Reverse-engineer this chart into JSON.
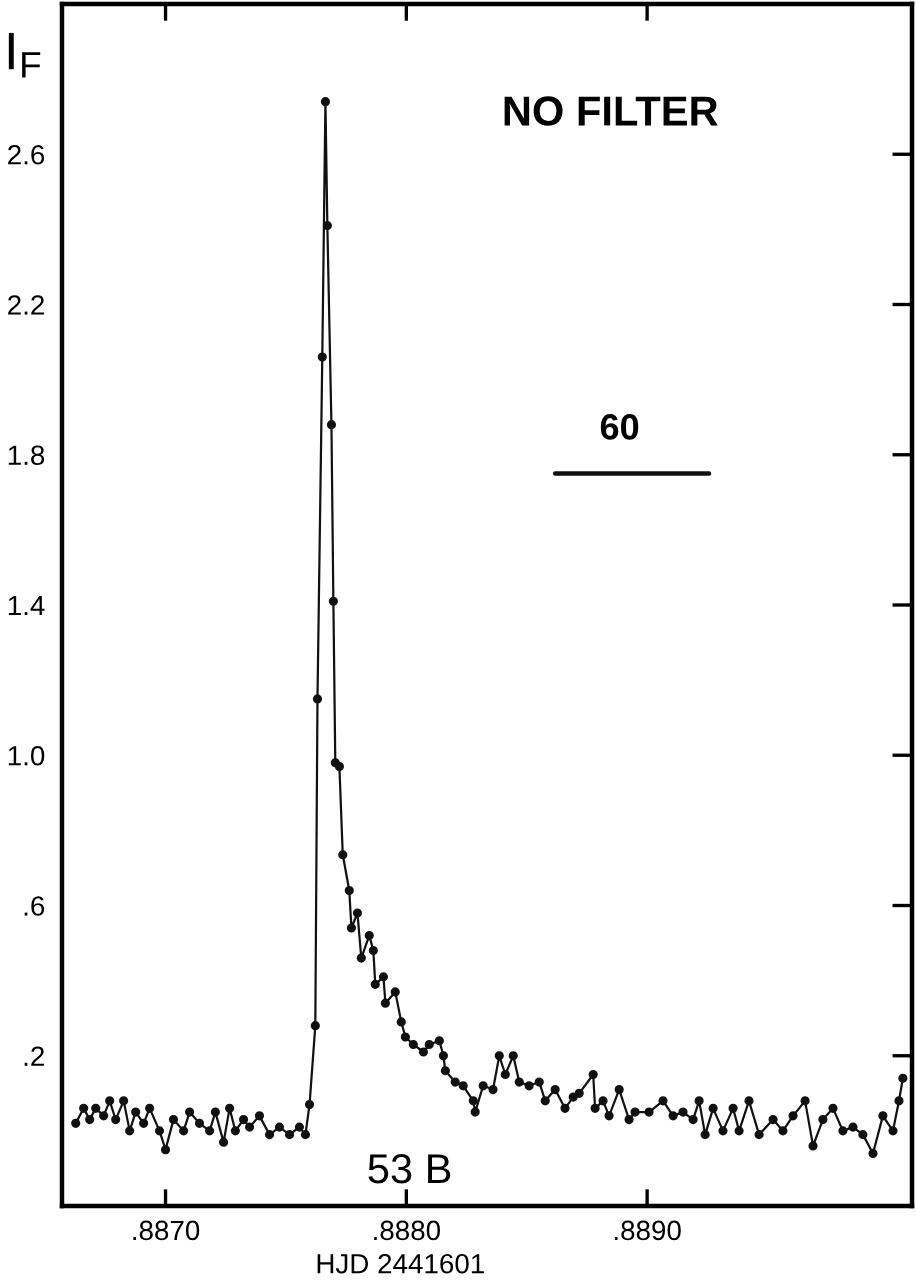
{
  "chart_data": {
    "type": "line",
    "title": "NO FILTER",
    "xlabel": "HJD 2441601",
    "ylabel": "I$_{F}$",
    "marker": "circle",
    "line_style": "solid",
    "xlim": [
      0.88657,
      0.8901
    ],
    "ylim": [
      -0.2,
      3.0
    ],
    "xticks": [
      {
        "value": 0.887,
        "label": ".8870"
      },
      {
        "value": 0.888,
        "label": ".8880"
      },
      {
        "value": 0.889,
        "label": ".8890"
      }
    ],
    "yticks": [
      {
        "value": 0.2,
        "label": ".2"
      },
      {
        "value": 0.6,
        "label": ".6"
      },
      {
        "value": 1,
        "label": "1.0"
      },
      1.4,
      1.8,
      2.2,
      2.6
    ],
    "annotations": [
      "53 B",
      "60"
    ],
    "series": [
      {
        "color": "#111111",
        "x": [
          0.886627,
          0.88666,
          0.886685,
          0.88671,
          0.886743,
          0.886768,
          0.886793,
          0.886826,
          0.886851,
          0.886876,
          0.886909,
          0.886934,
          0.886975,
          0.887,
          0.887033,
          0.887075,
          0.8871,
          0.887141,
          0.887183,
          0.887207,
          0.887241,
          0.887266,
          0.88729,
          0.887324,
          0.887349,
          0.88739,
          0.887432,
          0.887473,
          0.887515,
          0.887556,
          0.887581,
          0.887598,
          0.887622,
          0.887631,
          0.887651,
          0.887664,
          0.887672,
          0.887689,
          0.887697,
          0.887705,
          0.887722,
          0.887736,
          0.887763,
          0.887772,
          0.887797,
          0.887813,
          0.887846,
          0.887863,
          0.887871,
          0.887905,
          0.887913,
          0.887954,
          0.887979,
          0.887996,
          0.888029,
          0.888071,
          0.888095,
          0.888137,
          0.888154,
          0.888162,
          0.888203,
          0.888236,
          0.888278,
          0.888286,
          0.888319,
          0.88836,
          0.888386,
          0.888411,
          0.888444,
          0.888469,
          0.88851,
          0.888552,
          0.888577,
          0.888618,
          0.888659,
          0.888693,
          0.888718,
          0.888776,
          0.888784,
          0.888817,
          0.888842,
          0.888884,
          0.888925,
          0.88895,
          0.889008,
          0.889066,
          0.889108,
          0.889149,
          0.889191,
          0.889216,
          0.889241,
          0.889274,
          0.889315,
          0.889357,
          0.889382,
          0.889423,
          0.889465,
          0.889523,
          0.889564,
          0.889606,
          0.889656,
          0.889689,
          0.88973,
          0.889772,
          0.889813,
          0.889855,
          0.889896,
          0.889938,
          0.889979,
          0.890021,
          0.890046,
          0.890062
        ],
        "values": [
          0.02,
          0.06,
          0.03,
          0.06,
          0.04,
          0.08,
          0.03,
          0.08,
          0.0,
          0.05,
          0.02,
          0.06,
          0.0,
          -0.05,
          0.03,
          0.0,
          0.05,
          0.02,
          0.0,
          0.05,
          -0.03,
          0.06,
          0.0,
          0.03,
          0.01,
          0.04,
          -0.01,
          0.01,
          -0.01,
          0.01,
          -0.01,
          0.07,
          0.28,
          1.15,
          2.06,
          2.74,
          2.41,
          1.88,
          1.41,
          0.98,
          0.97,
          0.735,
          0.64,
          0.54,
          0.58,
          0.46,
          0.52,
          0.48,
          0.39,
          0.41,
          0.34,
          0.37,
          0.29,
          0.25,
          0.23,
          0.21,
          0.23,
          0.24,
          0.2,
          0.16,
          0.13,
          0.12,
          0.08,
          0.05,
          0.12,
          0.11,
          0.2,
          0.15,
          0.2,
          0.13,
          0.12,
          0.13,
          0.08,
          0.11,
          0.06,
          0.09,
          0.1,
          0.15,
          0.06,
          0.08,
          0.04,
          0.11,
          0.03,
          0.05,
          0.05,
          0.08,
          0.04,
          0.05,
          0.03,
          0.08,
          -0.01,
          0.06,
          0.0,
          0.06,
          0.0,
          0.08,
          -0.01,
          0.03,
          0.0,
          0.04,
          0.08,
          -0.04,
          0.03,
          0.06,
          0.0,
          0.01,
          -0.01,
          -0.06,
          0.04,
          0.0,
          0.08,
          0.14
        ]
      },
      {
        "color": "#111111",
        "marker": "none",
        "x": [
          0.888618,
          0.889257
        ],
        "values": [
          1.75,
          1.75
        ]
      }
    ]
  }
}
